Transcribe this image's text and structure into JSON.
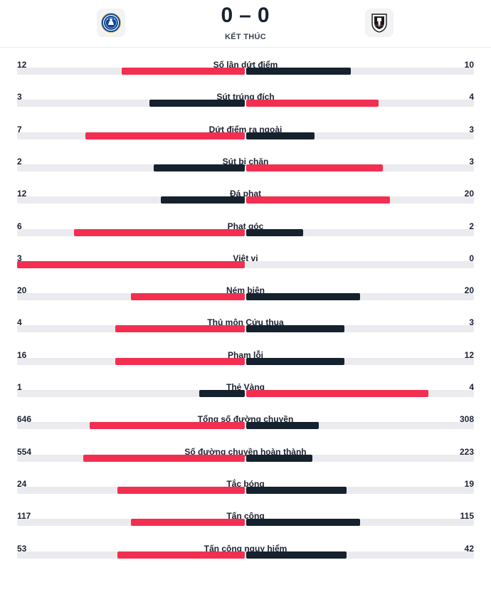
{
  "match": {
    "home_team_icon": "chelsea-crest-icon",
    "away_team_icon": "fulham-crest-icon",
    "home_score": "0",
    "score_separator": "–",
    "away_score": "0",
    "status": "KẾT THÚC"
  },
  "colors": {
    "leader": "#f22f50",
    "trailer": "#16212e",
    "track": "#ebebef"
  },
  "stats": [
    {
      "label": "Số lần dứt điểm",
      "home": "12",
      "away": "10",
      "home_fill": 0.54,
      "away_fill": 0.46
    },
    {
      "label": "Sút trúng đích",
      "home": "3",
      "away": "4",
      "home_fill": 0.42,
      "away_fill": 0.58
    },
    {
      "label": "Dứt điểm ra ngoài",
      "home": "7",
      "away": "3",
      "home_fill": 0.7,
      "away_fill": 0.3
    },
    {
      "label": "Sút bị chặn",
      "home": "2",
      "away": "3",
      "home_fill": 0.4,
      "away_fill": 0.6
    },
    {
      "label": "Đá phạt",
      "home": "12",
      "away": "20",
      "home_fill": 0.37,
      "away_fill": 0.63
    },
    {
      "label": "Phạt góc",
      "home": "6",
      "away": "2",
      "home_fill": 0.75,
      "away_fill": 0.25
    },
    {
      "label": "Việt vị",
      "home": "3",
      "away": "0",
      "home_fill": 1.0,
      "away_fill": 0.0
    },
    {
      "label": "Ném biên",
      "home": "20",
      "away": "20",
      "home_fill": 0.5,
      "away_fill": 0.5
    },
    {
      "label": "Thủ môn Cứu thua",
      "home": "4",
      "away": "3",
      "home_fill": 0.57,
      "away_fill": 0.43
    },
    {
      "label": "Phạm lỗi",
      "home": "16",
      "away": "12",
      "home_fill": 0.57,
      "away_fill": 0.43
    },
    {
      "label": "Thẻ Vàng",
      "home": "1",
      "away": "4",
      "home_fill": 0.2,
      "away_fill": 0.8
    },
    {
      "label": "Tổng số đường chuyền",
      "home": "646",
      "away": "308",
      "home_fill": 0.68,
      "away_fill": 0.32
    },
    {
      "label": "Số đường chuyền hoàn thành",
      "home": "554",
      "away": "223",
      "home_fill": 0.71,
      "away_fill": 0.29
    },
    {
      "label": "Tắc bóng",
      "home": "24",
      "away": "19",
      "home_fill": 0.56,
      "away_fill": 0.44
    },
    {
      "label": "Tấn công",
      "home": "117",
      "away": "115",
      "home_fill": 0.5,
      "away_fill": 0.5
    },
    {
      "label": "Tấn công nguy hiểm",
      "home": "53",
      "away": "42",
      "home_fill": 0.56,
      "away_fill": 0.44
    }
  ]
}
